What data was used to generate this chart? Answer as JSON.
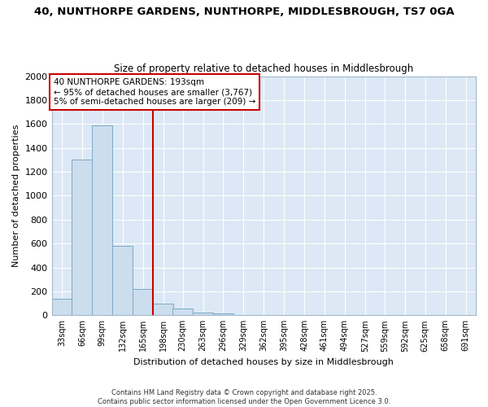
{
  "title1": "40, NUNTHORPE GARDENS, NUNTHORPE, MIDDLESBROUGH, TS7 0GA",
  "title2": "Size of property relative to detached houses in Middlesbrough",
  "xlabel": "Distribution of detached houses by size in Middlesbrough",
  "ylabel": "Number of detached properties",
  "bar_edges": [
    33,
    66,
    99,
    132,
    165,
    198,
    230,
    263,
    296,
    329,
    362,
    395,
    428,
    461,
    494,
    527,
    559,
    592,
    625,
    658,
    691,
    724
  ],
  "bar_heights": [
    140,
    1300,
    1590,
    580,
    220,
    100,
    55,
    25,
    15,
    5,
    3,
    1,
    0,
    0,
    0,
    0,
    0,
    0,
    0,
    0,
    0
  ],
  "bar_color": "#ccdded",
  "bar_edgecolor": "#7aaac8",
  "vline_color": "#cc0000",
  "vline_x": 198,
  "annotation_text": "40 NUNTHORPE GARDENS: 193sqm\n← 95% of detached houses are smaller (3,767)\n5% of semi-detached houses are larger (209) →",
  "annotation_box_color": "#cc0000",
  "ylim": [
    0,
    2000
  ],
  "yticks": [
    0,
    200,
    400,
    600,
    800,
    1000,
    1200,
    1400,
    1600,
    1800,
    2000
  ],
  "tick_labels": [
    "33sqm",
    "66sqm",
    "99sqm",
    "132sqm",
    "165sqm",
    "198sqm",
    "230sqm",
    "263sqm",
    "296sqm",
    "329sqm",
    "362sqm",
    "395sqm",
    "428sqm",
    "461sqm",
    "494sqm",
    "527sqm",
    "559sqm",
    "592sqm",
    "625sqm",
    "658sqm",
    "691sqm"
  ],
  "plot_bg_color": "#dce8f5",
  "fig_bg_color": "#ffffff",
  "grid_color": "#ffffff",
  "footer1": "Contains HM Land Registry data © Crown copyright and database right 2025.",
  "footer2": "Contains public sector information licensed under the Open Government Licence 3.0."
}
